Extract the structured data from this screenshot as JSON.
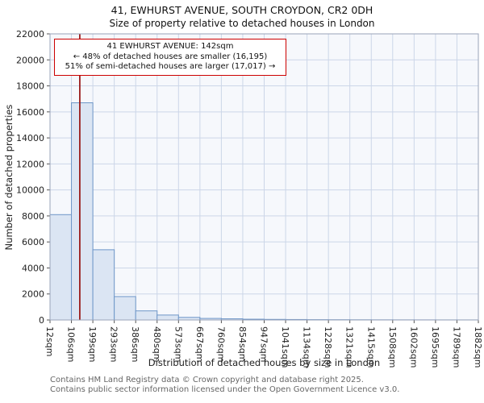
{
  "title": {
    "line1": "41, EWHURST AVENUE, SOUTH CROYDON, CR2 0DH",
    "line2": "Size of property relative to detached houses in London"
  },
  "annotation": {
    "line1": "41 EWHURST AVENUE: 142sqm",
    "line2": "← 48% of detached houses are smaller (16,195)",
    "line3": "51% of semi-detached houses are larger (17,017) →"
  },
  "footer": {
    "line1": "Contains HM Land Registry data © Crown copyright and database right 2025.",
    "line2": "Contains public sector information licensed under the Open Government Licence v3.0."
  },
  "chart_data": {
    "type": "bar",
    "title": "41, EWHURST AVENUE, SOUTH CROYDON, CR2 0DH — Size of property relative to detached houses in London",
    "xlabel": "Distribution of detached houses by size in London",
    "ylabel": "Number of detached properties",
    "bin_edges": [
      12,
      106,
      199,
      293,
      386,
      480,
      573,
      667,
      760,
      854,
      947,
      1041,
      1134,
      1228,
      1321,
      1415,
      1508,
      1602,
      1695,
      1789,
      1882
    ],
    "bin_edge_labels": [
      "12sqm",
      "106sqm",
      "199sqm",
      "293sqm",
      "386sqm",
      "480sqm",
      "573sqm",
      "667sqm",
      "760sqm",
      "854sqm",
      "947sqm",
      "1041sqm",
      "1134sqm",
      "1228sqm",
      "1321sqm",
      "1415sqm",
      "1508sqm",
      "1602sqm",
      "1695sqm",
      "1789sqm",
      "1882sqm"
    ],
    "values": [
      8100,
      16700,
      5400,
      1800,
      700,
      380,
      200,
      120,
      90,
      60,
      45,
      35,
      25,
      20,
      15,
      12,
      10,
      8,
      6,
      5
    ],
    "ylim": [
      0,
      22000
    ],
    "ytick_step": 2000,
    "grid": "on",
    "legend": "none",
    "marker": {
      "label": "41 EWHURST AVENUE",
      "value_sqm": 142,
      "color": "#9b1c1c"
    },
    "colors": {
      "bar_fill": "#dbe5f3",
      "bar_stroke": "#6e96c8",
      "grid": "#ccd6e8",
      "plot_bg": "#f6f8fc",
      "spine": "#9aa3b8",
      "tick_text": "#222222"
    }
  }
}
